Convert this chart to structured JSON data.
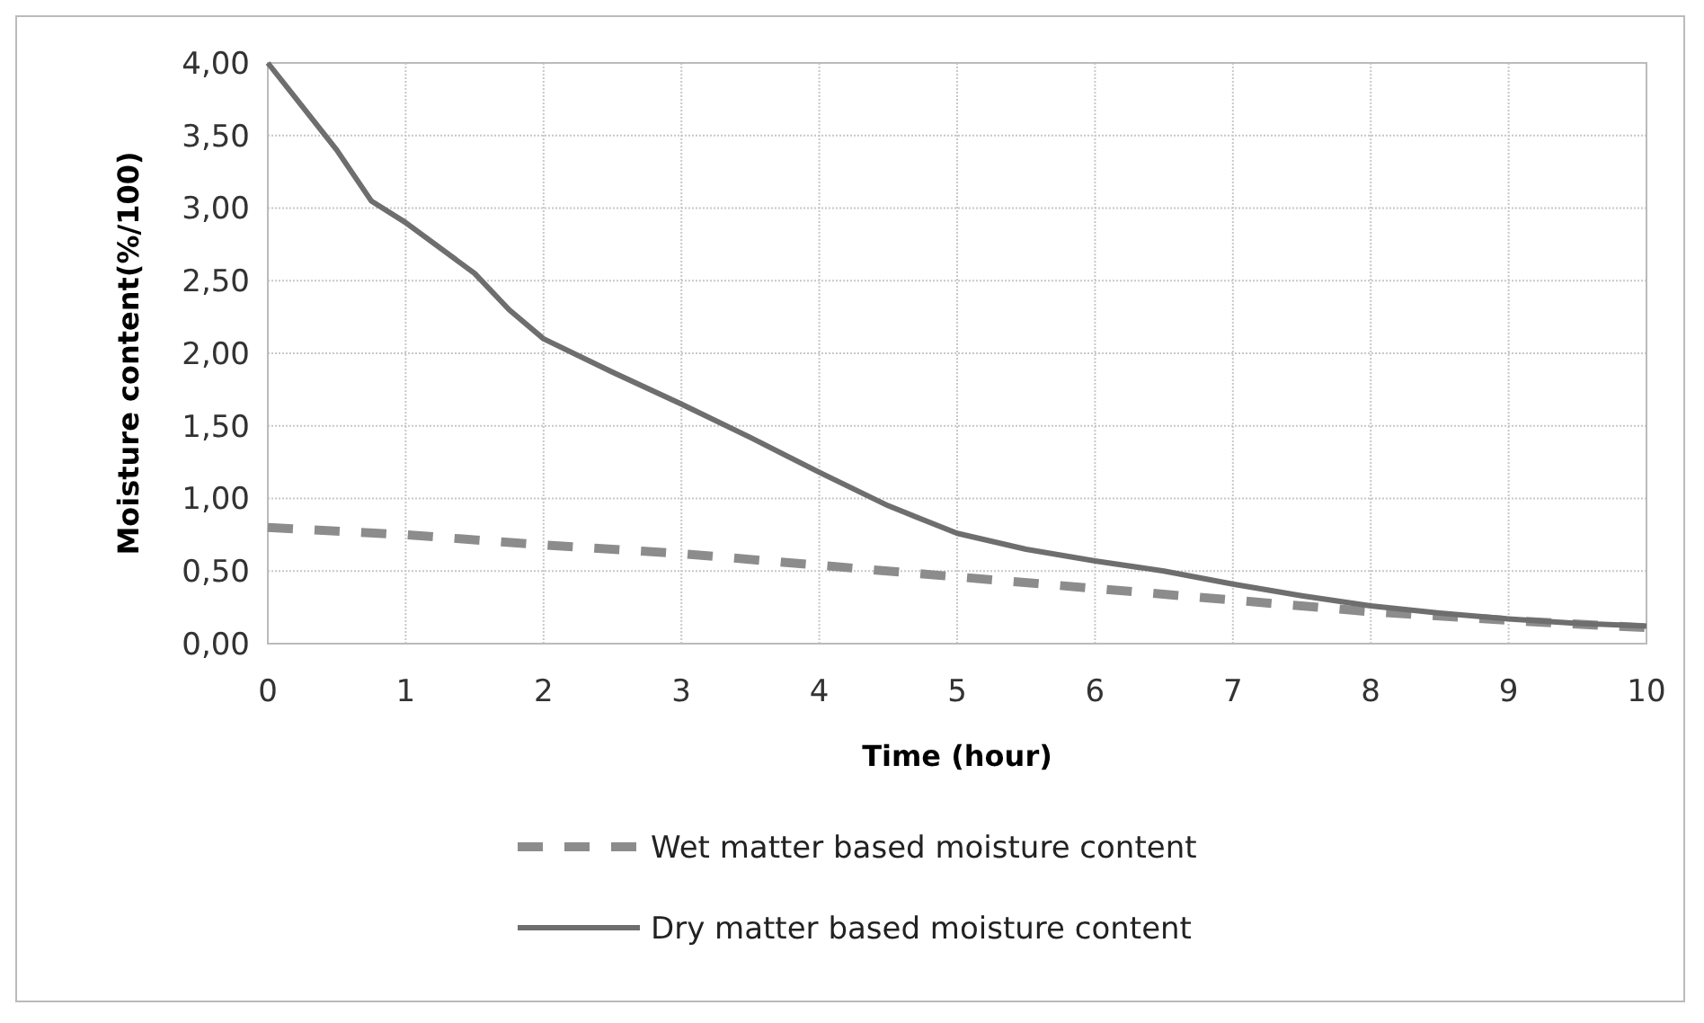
{
  "chart_data": {
    "type": "line",
    "xlabel": "Time (hour)",
    "ylabel": "Moisture content(%/100)",
    "xlim": [
      0,
      10
    ],
    "xticks": [
      0,
      1,
      2,
      3,
      4,
      5,
      6,
      7,
      8,
      9,
      10
    ],
    "ylim": [
      0,
      4
    ],
    "yticks": [
      {
        "value": 0,
        "label": "0,00"
      },
      {
        "value": 0.5,
        "label": "0,50"
      },
      {
        "value": 1,
        "label": "1,00"
      },
      {
        "value": 1.5,
        "label": "1,50"
      },
      {
        "value": 2,
        "label": "2,00"
      },
      {
        "value": 2.5,
        "label": "2,50"
      },
      {
        "value": 3,
        "label": "3,00"
      },
      {
        "value": 3.5,
        "label": "3,50"
      },
      {
        "value": 4,
        "label": "4,00"
      }
    ],
    "grid": true,
    "legend": "bottom",
    "marker": "none",
    "series": [
      {
        "name": "Wet matter based moisture content",
        "color": "#8c8c8c",
        "line_style": "dashed",
        "x": [
          0,
          1,
          2,
          3,
          4,
          5,
          6,
          7,
          8,
          9,
          10
        ],
        "values": [
          0.8,
          0.75,
          0.68,
          0.62,
          0.54,
          0.46,
          0.38,
          0.3,
          0.22,
          0.16,
          0.11
        ]
      },
      {
        "name": "Dry matter based moisture content",
        "color": "#6e6e6e",
        "line_style": "solid",
        "x": [
          0,
          0.25,
          0.5,
          0.75,
          1,
          1.5,
          1.75,
          2,
          2.5,
          3,
          3.5,
          4,
          4.5,
          5,
          5.5,
          6,
          6.5,
          7,
          7.5,
          8,
          8.5,
          9,
          9.5,
          10
        ],
        "values": [
          4.0,
          3.7,
          3.4,
          3.05,
          2.9,
          2.55,
          2.3,
          2.1,
          1.87,
          1.65,
          1.42,
          1.18,
          0.95,
          0.76,
          0.65,
          0.57,
          0.5,
          0.41,
          0.33,
          0.26,
          0.21,
          0.17,
          0.14,
          0.12
        ]
      }
    ]
  }
}
